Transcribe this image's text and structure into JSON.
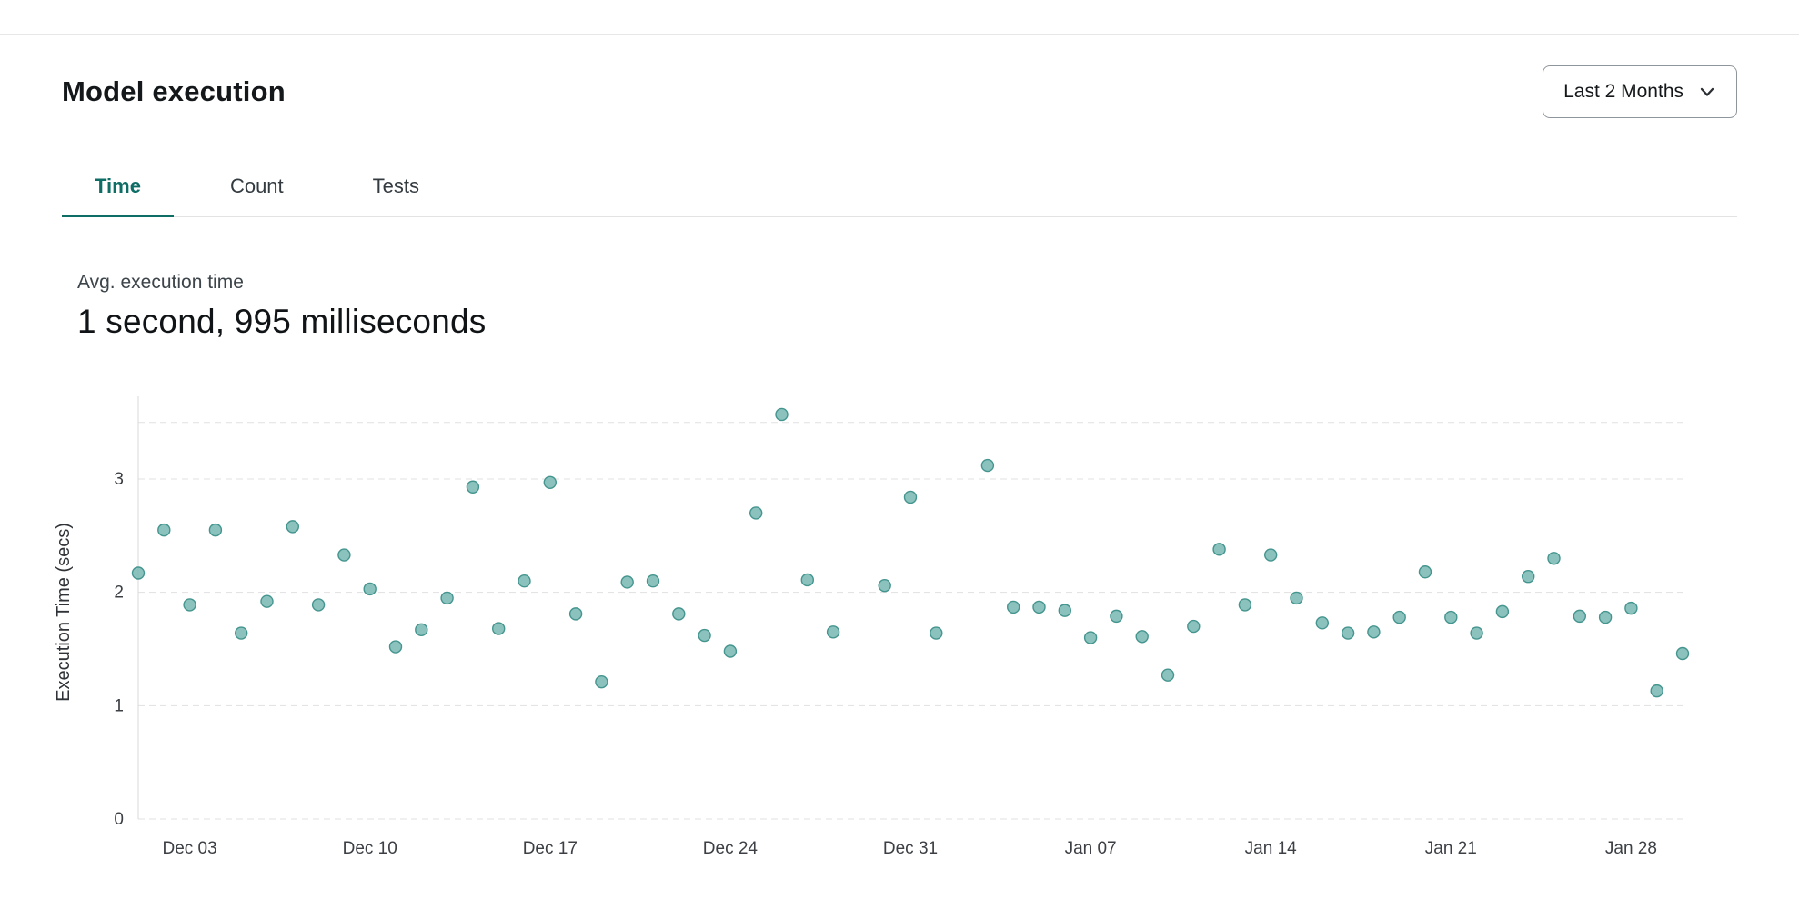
{
  "header": {
    "title": "Model execution",
    "range_selector": {
      "label": "Last 2 Months"
    }
  },
  "tabs": [
    {
      "label": "Time",
      "active": true
    },
    {
      "label": "Count",
      "active": false
    },
    {
      "label": "Tests",
      "active": false
    }
  ],
  "summary": {
    "label": "Avg. execution time",
    "value": "1 second, 995 milliseconds"
  },
  "chart_data": {
    "type": "scatter",
    "title": "",
    "xlabel": "",
    "ylabel": "Execution Time (secs)",
    "ylim": [
      0,
      3.65
    ],
    "xlim": [
      0,
      60
    ],
    "yticks": [
      0,
      1,
      2,
      3
    ],
    "gridlines": [
      0,
      1,
      2,
      3,
      3.5
    ],
    "grid_style": "dashed",
    "legend": "none",
    "x_ticks": [
      {
        "day": 2,
        "label": "Dec 03"
      },
      {
        "day": 9,
        "label": "Dec 10"
      },
      {
        "day": 16,
        "label": "Dec 17"
      },
      {
        "day": 23,
        "label": "Dec 24"
      },
      {
        "day": 30,
        "label": "Dec 31"
      },
      {
        "day": 37,
        "label": "Jan 07"
      },
      {
        "day": 44,
        "label": "Jan 14"
      },
      {
        "day": 51,
        "label": "Jan 21"
      },
      {
        "day": 58,
        "label": "Jan 28"
      }
    ],
    "points": [
      {
        "day": 0,
        "label": "Dec 01",
        "value": 2.17
      },
      {
        "day": 1,
        "label": "Dec 02",
        "value": 2.55
      },
      {
        "day": 2,
        "label": "Dec 03",
        "value": 1.89
      },
      {
        "day": 3,
        "label": "Dec 04",
        "value": 2.55
      },
      {
        "day": 4,
        "label": "Dec 05",
        "value": 1.64
      },
      {
        "day": 5,
        "label": "Dec 06",
        "value": 1.92
      },
      {
        "day": 6,
        "label": "Dec 07",
        "value": 2.58
      },
      {
        "day": 7,
        "label": "Dec 08",
        "value": 1.89
      },
      {
        "day": 8,
        "label": "Dec 09",
        "value": 2.33
      },
      {
        "day": 9,
        "label": "Dec 10",
        "value": 2.03
      },
      {
        "day": 10,
        "label": "Dec 11",
        "value": 1.52
      },
      {
        "day": 11,
        "label": "Dec 12",
        "value": 1.67
      },
      {
        "day": 12,
        "label": "Dec 13",
        "value": 1.95
      },
      {
        "day": 13,
        "label": "Dec 14",
        "value": 2.93
      },
      {
        "day": 14,
        "label": "Dec 15",
        "value": 1.68
      },
      {
        "day": 15,
        "label": "Dec 16",
        "value": 2.1
      },
      {
        "day": 16,
        "label": "Dec 17",
        "value": 2.97
      },
      {
        "day": 17,
        "label": "Dec 18",
        "value": 1.81
      },
      {
        "day": 18,
        "label": "Dec 19",
        "value": 1.21
      },
      {
        "day": 19,
        "label": "Dec 20",
        "value": 2.09
      },
      {
        "day": 20,
        "label": "Dec 21",
        "value": 2.1
      },
      {
        "day": 21,
        "label": "Dec 22",
        "value": 1.81
      },
      {
        "day": 22,
        "label": "Dec 23",
        "value": 1.62
      },
      {
        "day": 23,
        "label": "Dec 24",
        "value": 1.48
      },
      {
        "day": 24,
        "label": "Dec 25",
        "value": 2.7
      },
      {
        "day": 25,
        "label": "Dec 26",
        "value": 3.57
      },
      {
        "day": 26,
        "label": "Dec 27",
        "value": 2.11
      },
      {
        "day": 27,
        "label": "Dec 28",
        "value": 1.65
      },
      {
        "day": 29,
        "label": "Dec 30",
        "value": 2.06
      },
      {
        "day": 30,
        "label": "Dec 31",
        "value": 2.84
      },
      {
        "day": 31,
        "label": "Jan 01",
        "value": 1.64
      },
      {
        "day": 33,
        "label": "Jan 03",
        "value": 3.12
      },
      {
        "day": 34,
        "label": "Jan 04",
        "value": 1.87
      },
      {
        "day": 35,
        "label": "Jan 05",
        "value": 1.87
      },
      {
        "day": 36,
        "label": "Jan 06",
        "value": 1.84
      },
      {
        "day": 37,
        "label": "Jan 07",
        "value": 1.6
      },
      {
        "day": 38,
        "label": "Jan 08",
        "value": 1.79
      },
      {
        "day": 39,
        "label": "Jan 09",
        "value": 1.61
      },
      {
        "day": 40,
        "label": "Jan 10",
        "value": 1.27
      },
      {
        "day": 41,
        "label": "Jan 11",
        "value": 1.7
      },
      {
        "day": 42,
        "label": "Jan 12",
        "value": 2.38
      },
      {
        "day": 43,
        "label": "Jan 13",
        "value": 1.89
      },
      {
        "day": 44,
        "label": "Jan 14",
        "value": 2.33
      },
      {
        "day": 45,
        "label": "Jan 15",
        "value": 1.95
      },
      {
        "day": 46,
        "label": "Jan 16",
        "value": 1.73
      },
      {
        "day": 47,
        "label": "Jan 17",
        "value": 1.64
      },
      {
        "day": 48,
        "label": "Jan 18",
        "value": 1.65
      },
      {
        "day": 49,
        "label": "Jan 19",
        "value": 1.78
      },
      {
        "day": 50,
        "label": "Jan 20",
        "value": 2.18
      },
      {
        "day": 51,
        "label": "Jan 21",
        "value": 1.78
      },
      {
        "day": 52,
        "label": "Jan 22",
        "value": 1.64
      },
      {
        "day": 53,
        "label": "Jan 23",
        "value": 1.83
      },
      {
        "day": 54,
        "label": "Jan 24",
        "value": 2.14
      },
      {
        "day": 55,
        "label": "Jan 25",
        "value": 2.3
      },
      {
        "day": 56,
        "label": "Jan 26",
        "value": 1.79
      },
      {
        "day": 57,
        "label": "Jan 27",
        "value": 1.78
      },
      {
        "day": 58,
        "label": "Jan 28",
        "value": 1.86
      },
      {
        "day": 59,
        "label": "Jan 29",
        "value": 1.13
      },
      {
        "day": 60,
        "label": "Jan 30",
        "value": 1.46
      }
    ],
    "colors": {
      "dot_fill": "#7bbab5",
      "dot_stroke": "#45958f",
      "grid": "#e1e1e1",
      "axis_line": "#d8d8d8",
      "tick_text": "#3c4045",
      "accent": "#0e6e66"
    }
  }
}
